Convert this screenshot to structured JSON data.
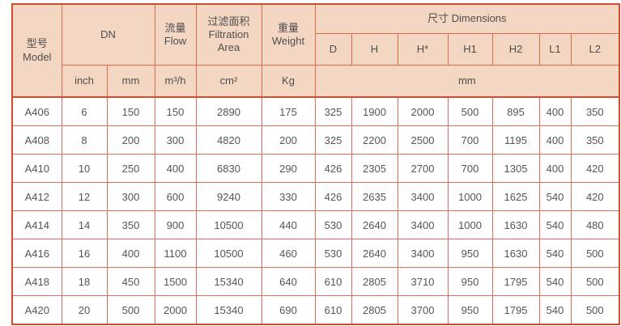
{
  "colors": {
    "header_bg": "#f4d7c3",
    "outer_border": "#d34b31",
    "header_grid": "#dd6b4a",
    "body_grid": "#dd6e5e",
    "text": "#545454"
  },
  "table": {
    "header": {
      "model": "型号\nModel",
      "dn": "DN",
      "flow": "流量\nFlow",
      "filtration_area": "过滤面积\nFiltration\nArea",
      "weight": "重量\nWeight",
      "dimensions": "尺寸 Dimensions",
      "dim_cols": [
        "D",
        "H",
        "H*",
        "H1",
        "H2",
        "L1",
        "L2"
      ],
      "units": {
        "inch": "inch",
        "mm": "mm",
        "flow": "m³/h",
        "area": "cm²",
        "weight": "Kg",
        "dims": "mm"
      }
    },
    "rows": [
      {
        "cells": [
          "A406",
          "6",
          "150",
          "150",
          "2890",
          "175",
          "325",
          "1900",
          "2000",
          "500",
          "895",
          "400",
          "350"
        ]
      },
      {
        "cells": [
          "A408",
          "8",
          "200",
          "300",
          "4820",
          "200",
          "325",
          "2200",
          "2500",
          "700",
          "1195",
          "400",
          "350"
        ]
      },
      {
        "cells": [
          "A410",
          "10",
          "250",
          "400",
          "6830",
          "290",
          "426",
          "2305",
          "2700",
          "700",
          "1305",
          "400",
          "420"
        ]
      },
      {
        "cells": [
          "A412",
          "12",
          "300",
          "600",
          "9240",
          "330",
          "426",
          "2635",
          "3400",
          "1000",
          "1625",
          "540",
          "420"
        ]
      },
      {
        "cells": [
          "A414",
          "14",
          "350",
          "900",
          "10500",
          "440",
          "530",
          "2640",
          "3400",
          "1000",
          "1630",
          "540",
          "480"
        ]
      },
      {
        "cells": [
          "A416",
          "16",
          "400",
          "1100",
          "10500",
          "460",
          "530",
          "2640",
          "3400",
          "950",
          "1630",
          "540",
          "500"
        ]
      },
      {
        "cells": [
          "A418",
          "18",
          "450",
          "1500",
          "15340",
          "640",
          "610",
          "2805",
          "3710",
          "950",
          "1795",
          "540",
          "500"
        ]
      },
      {
        "cells": [
          "A420",
          "20",
          "500",
          "2000",
          "15340",
          "690",
          "610",
          "2805",
          "3700",
          "950",
          "1795",
          "540",
          "500"
        ]
      }
    ]
  }
}
